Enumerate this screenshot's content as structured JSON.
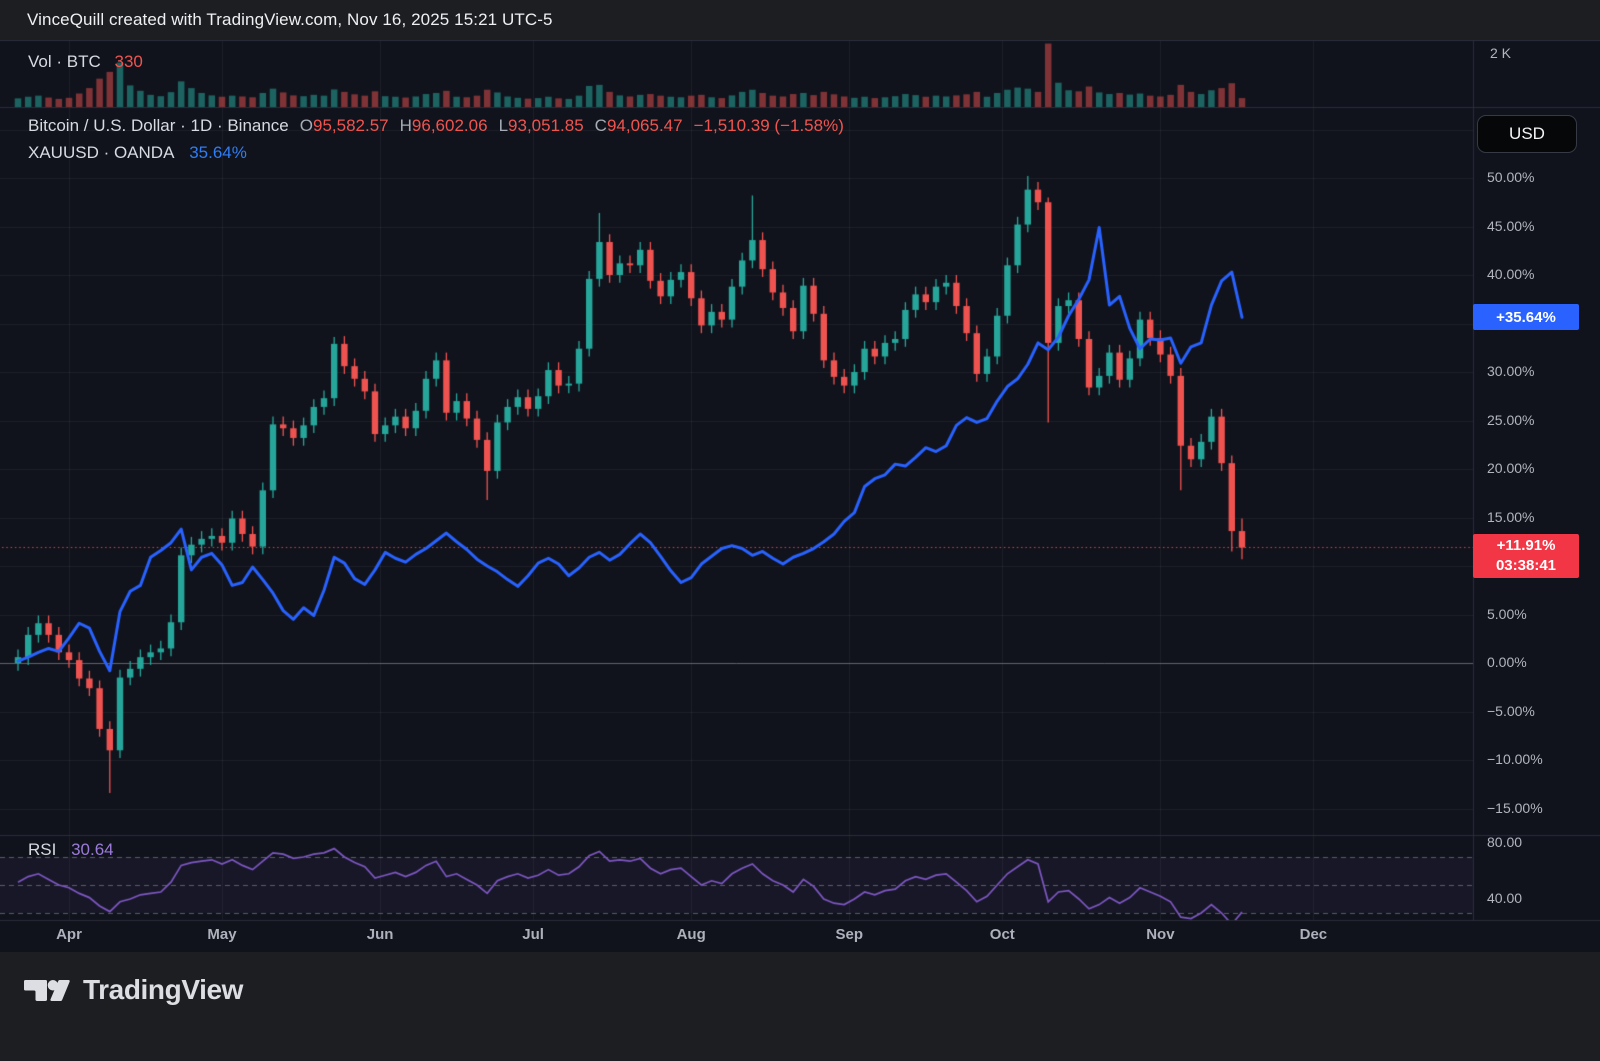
{
  "header": {
    "title": "VinceQuill created with TradingView.com, Nov 16, 2025 15:21 UTC-5"
  },
  "legend": {
    "vol_label": "Vol · BTC",
    "vol_value": "330",
    "symbol_title": "Bitcoin / U.S. Dollar · 1D · Binance",
    "ohlc": [
      {
        "k": "O",
        "v": "95,582.57"
      },
      {
        "k": "H",
        "v": "96,602.06"
      },
      {
        "k": "L",
        "v": "93,051.85"
      },
      {
        "k": "C",
        "v": "94,065.47"
      }
    ],
    "change": "−1,510.39 (−1.58%)",
    "xau_title": "XAUUSD · OANDA",
    "xau_value": "35.64%"
  },
  "axis": {
    "currency_button": "USD",
    "vol_labels": [
      {
        "text": "2 K",
        "value": 2000
      }
    ],
    "main_labels": [
      {
        "text": "50.00%",
        "value": 50
      },
      {
        "text": "45.00%",
        "value": 45
      },
      {
        "text": "40.00%",
        "value": 40
      },
      {
        "text": "30.00%",
        "value": 30
      },
      {
        "text": "25.00%",
        "value": 25
      },
      {
        "text": "20.00%",
        "value": 20
      },
      {
        "text": "15.00%",
        "value": 15
      },
      {
        "text": "5.00%",
        "value": 5
      },
      {
        "text": "0.00%",
        "value": 0
      },
      {
        "text": "−5.00%",
        "value": -5
      },
      {
        "text": "−10.00%",
        "value": -10
      },
      {
        "text": "−15.00%",
        "value": -15
      }
    ],
    "rsi_labels": [
      {
        "text": "80.00",
        "value": 80
      },
      {
        "text": "40.00",
        "value": 40
      }
    ]
  },
  "badges": {
    "xau": {
      "text": "+35.64%",
      "value": 35.64
    },
    "btc": {
      "line1": "+11.91%",
      "line2": "03:38:41",
      "value": 11.91
    }
  },
  "footer": {
    "brand": "TradingView"
  },
  "colors": {
    "up": "#26a69a",
    "down": "#ef5350",
    "xau_line": "#2962ff",
    "rsi_line": "#7e57c2",
    "rsi_value": "#9b7bd8",
    "dotted_line": "#f23645",
    "badge_red": "#f23645",
    "badge_blue": "#2962ff",
    "grid": "rgba(255,255,255,0.055)",
    "separator": "#2a2e39",
    "zero_line": "rgba(140,143,155,0.65)",
    "vol_up": "rgba(38,166,154,0.55)",
    "vol_down": "rgba(239,83,80,0.5)"
  },
  "rsi_legend": {
    "label": "RSI",
    "value": "30.64"
  },
  "chart_data": {
    "type": "mixed",
    "description": "BTCUSD daily candles (percent change) with XAUUSD percent-change line overlay, volume pane above, RSI pane below",
    "step_days_per_point": 2,
    "x_months": [
      {
        "label": "Apr",
        "day": 10
      },
      {
        "label": "May",
        "day": 40
      },
      {
        "label": "Jun",
        "day": 71
      },
      {
        "label": "Jul",
        "day": 101
      },
      {
        "label": "Aug",
        "day": 132
      },
      {
        "label": "Sep",
        "day": 163
      },
      {
        "label": "Oct",
        "day": 193
      },
      {
        "label": "Nov",
        "day": 224
      },
      {
        "label": "Dec",
        "day": 254
      }
    ],
    "main_ylim": [
      -17.7,
      57
    ],
    "vol_ylim": [
      0,
      2440
    ],
    "rsi_ylim": [
      18,
      86
    ],
    "zero_line": 0,
    "last_price_line": 11.91,
    "rsi_bands": [
      70,
      50,
      30
    ],
    "btc_closes_pct": [
      0.6,
      2.9,
      4.1,
      2.9,
      1.1,
      0.3,
      -1.6,
      -2.6,
      -6.8,
      -9.0,
      -1.5,
      -0.6,
      0.6,
      1.1,
      1.5,
      4.2,
      11.1,
      12.2,
      12.8,
      13.1,
      12.4,
      14.9,
      13.3,
      12.0,
      17.8,
      24.6,
      24.2,
      23.2,
      24.5,
      26.4,
      27.3,
      32.9,
      30.6,
      29.3,
      28.0,
      23.6,
      24.5,
      25.4,
      24.2,
      26.0,
      29.3,
      31.2,
      25.8,
      27.0,
      25.2,
      23.0,
      19.8,
      24.8,
      26.4,
      27.4,
      26.2,
      27.5,
      30.2,
      28.6,
      28.8,
      32.4,
      39.6,
      43.4,
      40.0,
      41.2,
      41.0,
      42.6,
      39.4,
      37.8,
      39.5,
      40.3,
      37.6,
      34.8,
      36.2,
      35.4,
      38.8,
      41.5,
      43.6,
      40.6,
      38.2,
      36.6,
      34.2,
      38.9,
      36.0,
      31.2,
      29.5,
      28.6,
      30.0,
      32.4,
      31.6,
      33.0,
      33.4,
      36.4,
      38.0,
      37.2,
      38.8,
      39.2,
      36.8,
      34.0,
      29.8,
      31.6,
      35.8,
      41.0,
      45.2,
      48.8,
      47.5,
      33.0,
      36.8,
      37.4,
      33.4,
      28.4,
      29.6,
      32.0,
      29.2,
      31.4,
      35.4,
      33.5,
      31.8,
      29.6,
      22.4,
      21.0,
      22.8,
      25.4,
      20.6,
      13.6,
      11.9
    ],
    "btc_highs_pct": [
      1.4,
      3.7,
      4.9,
      4.9,
      3.7,
      1.9,
      1.1,
      -0.8,
      -1.8,
      -6.0,
      -0.7,
      0.2,
      1.4,
      1.9,
      2.3,
      5.0,
      11.9,
      13.0,
      13.6,
      13.9,
      13.9,
      15.7,
      15.7,
      14.1,
      18.6,
      25.4,
      25.4,
      25.0,
      25.3,
      27.2,
      28.1,
      33.6,
      33.7,
      31.4,
      30.1,
      28.8,
      25.3,
      26.2,
      26.2,
      26.8,
      30.1,
      32.0,
      32.0,
      27.8,
      27.8,
      26.0,
      23.8,
      25.6,
      27.2,
      28.2,
      28.2,
      28.3,
      31.0,
      31.0,
      29.6,
      33.2,
      40.4,
      46.4,
      44.2,
      42.0,
      42.0,
      43.4,
      43.4,
      40.2,
      40.3,
      41.1,
      41.1,
      38.4,
      37.0,
      37.0,
      39.6,
      42.3,
      48.2,
      44.4,
      41.4,
      39.0,
      37.4,
      39.7,
      39.7,
      36.8,
      32.0,
      30.3,
      30.8,
      33.2,
      33.2,
      33.8,
      34.2,
      37.2,
      38.8,
      38.8,
      39.6,
      40.0,
      40.0,
      37.6,
      34.8,
      32.4,
      36.6,
      41.8,
      46.0,
      50.2,
      49.6,
      48.0,
      37.6,
      38.2,
      38.2,
      34.2,
      30.4,
      32.8,
      32.8,
      32.2,
      36.2,
      36.2,
      34.3,
      32.6,
      30.4,
      23.2,
      23.6,
      26.2,
      26.2,
      21.4,
      14.9
    ],
    "btc_lows_pct": [
      -0.8,
      -0.2,
      2.1,
      2.1,
      0.3,
      -0.5,
      -2.4,
      -3.4,
      -7.6,
      -13.4,
      -9.8,
      -2.3,
      -1.4,
      -0.2,
      0.3,
      0.7,
      3.4,
      10.3,
      11.4,
      12.0,
      11.6,
      11.6,
      12.5,
      11.2,
      11.2,
      17.0,
      23.4,
      22.4,
      22.4,
      23.7,
      25.6,
      26.5,
      29.8,
      28.5,
      27.2,
      22.8,
      22.8,
      23.7,
      23.4,
      23.4,
      25.2,
      28.5,
      25.0,
      25.0,
      24.4,
      22.2,
      16.8,
      19.0,
      24.0,
      25.6,
      25.4,
      25.4,
      26.7,
      27.8,
      27.8,
      28.0,
      31.6,
      38.8,
      39.2,
      39.2,
      40.2,
      40.2,
      38.6,
      37.0,
      37.0,
      38.7,
      36.8,
      34.0,
      34.0,
      34.6,
      34.6,
      38.0,
      40.7,
      39.8,
      37.4,
      35.8,
      33.4,
      33.4,
      35.2,
      30.4,
      28.7,
      27.8,
      27.8,
      29.2,
      30.8,
      30.8,
      32.2,
      32.6,
      35.6,
      36.4,
      36.4,
      38.0,
      36.0,
      33.2,
      29.0,
      29.0,
      30.8,
      35.0,
      40.2,
      44.4,
      46.7,
      24.8,
      32.2,
      36.0,
      32.6,
      27.6,
      27.6,
      28.8,
      28.4,
      28.4,
      30.6,
      32.7,
      31.0,
      28.8,
      17.8,
      20.2,
      20.2,
      22.0,
      19.8,
      11.5,
      10.7
    ],
    "xau_line_pct": [
      0.2,
      0.6,
      1.1,
      1.5,
      1.2,
      2.6,
      4.1,
      3.6,
      1.2,
      -0.8,
      5.3,
      7.4,
      8.0,
      10.9,
      11.6,
      12.4,
      13.8,
      9.6,
      10.9,
      11.3,
      10.1,
      8.0,
      8.3,
      9.9,
      8.6,
      7.2,
      5.4,
      4.5,
      5.7,
      4.9,
      7.5,
      10.9,
      10.3,
      8.7,
      8.1,
      9.6,
      11.4,
      10.8,
      10.4,
      11.2,
      11.8,
      12.6,
      13.4,
      12.5,
      11.7,
      10.7,
      10.0,
      9.4,
      8.6,
      7.9,
      9.0,
      10.3,
      10.8,
      10.2,
      9.0,
      9.8,
      10.9,
      11.4,
      10.6,
      11.2,
      12.3,
      13.3,
      12.4,
      11.0,
      9.5,
      8.3,
      8.8,
      10.2,
      11.0,
      11.8,
      12.1,
      11.8,
      11.1,
      11.5,
      10.8,
      10.2,
      10.9,
      11.3,
      11.8,
      12.5,
      13.3,
      14.6,
      15.5,
      18.2,
      19.0,
      19.4,
      20.5,
      20.3,
      21.2,
      22.2,
      21.8,
      22.4,
      24.5,
      25.3,
      24.8,
      25.2,
      27.0,
      28.5,
      29.3,
      30.8,
      33.0,
      32.3,
      33.6,
      35.8,
      37.5,
      39.5,
      44.9,
      36.9,
      37.8,
      34.5,
      32.4,
      33.4,
      33.3,
      33.5,
      30.9,
      32.6,
      33.0,
      36.9,
      39.4,
      40.3,
      35.64
    ],
    "rsi_values": [
      52,
      56,
      58,
      54,
      50,
      48,
      44,
      41,
      35,
      31,
      38,
      40,
      43,
      44,
      45,
      52,
      64,
      66,
      67,
      68,
      65,
      68,
      64,
      61,
      67,
      73,
      72,
      69,
      70,
      72,
      73,
      76,
      70,
      66,
      63,
      55,
      57,
      59,
      56,
      59,
      64,
      67,
      56,
      58,
      54,
      50,
      44,
      53,
      56,
      58,
      55,
      57,
      61,
      57,
      58,
      63,
      71,
      74,
      67,
      68,
      67,
      69,
      62,
      58,
      61,
      62,
      56,
      50,
      53,
      51,
      58,
      62,
      65,
      58,
      53,
      50,
      45,
      54,
      49,
      40,
      37,
      36,
      40,
      45,
      43,
      46,
      47,
      53,
      56,
      54,
      57,
      58,
      52,
      46,
      38,
      42,
      50,
      58,
      63,
      68,
      65,
      38,
      45,
      46,
      40,
      33,
      36,
      41,
      37,
      41,
      48,
      45,
      42,
      38,
      27,
      26,
      30,
      36,
      30,
      22,
      30.64
    ],
    "volume_btc": [
      320,
      380,
      420,
      350,
      300,
      340,
      500,
      700,
      1050,
      1300,
      1650,
      800,
      600,
      450,
      400,
      550,
      950,
      700,
      520,
      430,
      380,
      420,
      390,
      360,
      520,
      680,
      540,
      430,
      400,
      450,
      420,
      650,
      560,
      470,
      420,
      580,
      400,
      380,
      350,
      390,
      480,
      520,
      600,
      380,
      360,
      420,
      640,
      540,
      390,
      340,
      310,
      330,
      380,
      320,
      300,
      420,
      780,
      820,
      560,
      430,
      390,
      450,
      480,
      420,
      380,
      360,
      420,
      450,
      360,
      330,
      430,
      560,
      640,
      520,
      420,
      390,
      480,
      520,
      440,
      560,
      470,
      390,
      340,
      380,
      330,
      360,
      400,
      480,
      440,
      380,
      420,
      390,
      430,
      470,
      560,
      380,
      520,
      640,
      720,
      680,
      560,
      2350,
      900,
      620,
      580,
      760,
      540,
      480,
      520,
      460,
      500,
      420,
      390,
      450,
      820,
      560,
      480,
      620,
      700,
      880,
      330
    ]
  }
}
